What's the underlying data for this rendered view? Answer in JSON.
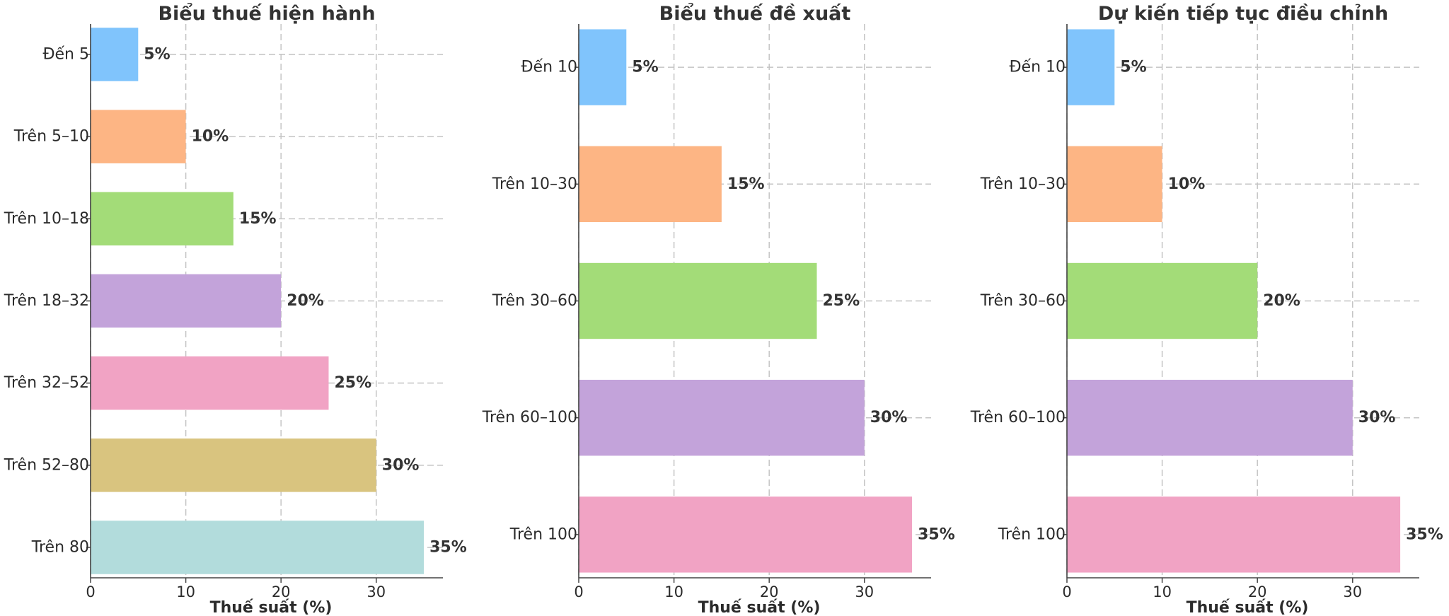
{
  "chart_data": [
    {
      "type": "bar",
      "orientation": "horizontal",
      "title": "Biểu thuế hiện hành",
      "xlabel": "Thuế suất (%)",
      "ylabel": "",
      "xlim": [
        0,
        37
      ],
      "xticks": [
        0,
        10,
        20,
        30
      ],
      "grid": true,
      "categories": [
        "Đến 5",
        "Trên 5–10",
        "Trên 10–18",
        "Trên 18–32",
        "Trên 32–52",
        "Trên 52–80",
        "Trên 80"
      ],
      "values": [
        5,
        10,
        15,
        20,
        25,
        30,
        35
      ],
      "value_labels": [
        "5%",
        "10%",
        "15%",
        "20%",
        "25%",
        "30%",
        "35%"
      ],
      "colors": [
        "#80c4fc",
        "#fdb584",
        "#a3dc78",
        "#c3a3da",
        "#f1a3c4",
        "#d9c47f",
        "#b2dcdc"
      ]
    },
    {
      "type": "bar",
      "orientation": "horizontal",
      "title": "Biểu thuế đề xuất",
      "xlabel": "Thuế suất (%)",
      "ylabel": "",
      "xlim": [
        0,
        37
      ],
      "xticks": [
        0,
        10,
        20,
        30
      ],
      "grid": true,
      "categories": [
        "Đến 10",
        "Trên 10–30",
        "Trên 30–60",
        "Trên 60–100",
        "Trên 100"
      ],
      "values": [
        5,
        15,
        25,
        30,
        35
      ],
      "value_labels": [
        "5%",
        "15%",
        "25%",
        "30%",
        "35%"
      ],
      "colors": [
        "#80c4fc",
        "#fdb584",
        "#a3dc78",
        "#c3a3da",
        "#f1a3c4"
      ]
    },
    {
      "type": "bar",
      "orientation": "horizontal",
      "title": "Dự kiến tiếp tục điều chỉnh",
      "xlabel": "Thuế suất (%)",
      "ylabel": "",
      "xlim": [
        0,
        37
      ],
      "xticks": [
        0,
        10,
        20,
        30
      ],
      "grid": true,
      "categories": [
        "Đến 10",
        "Trên 10–30",
        "Trên 30–60",
        "Trên 60–100",
        "Trên 100"
      ],
      "values": [
        5,
        10,
        20,
        30,
        35
      ],
      "value_labels": [
        "5%",
        "10%",
        "20%",
        "30%",
        "35%"
      ],
      "colors": [
        "#80c4fc",
        "#fdb584",
        "#a3dc78",
        "#c3a3da",
        "#f1a3c4"
      ]
    }
  ]
}
